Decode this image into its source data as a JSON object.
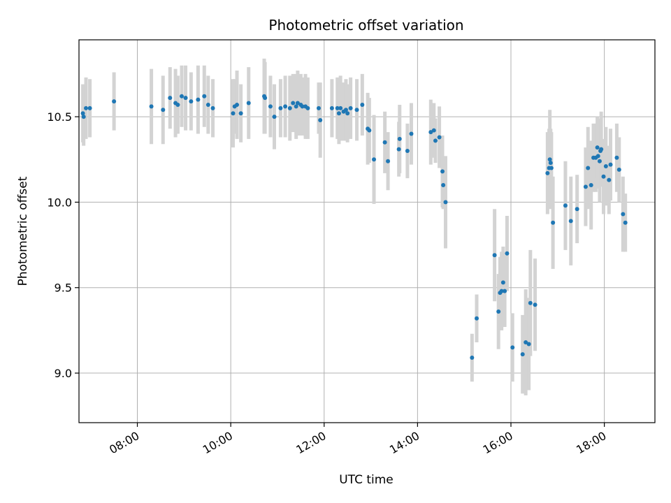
{
  "chart_data": {
    "type": "scatter",
    "title": "Photometric offset variation",
    "xlabel": "UTC time",
    "ylabel": "Photometric offset",
    "xlim": [
      "06:45",
      "19:05"
    ],
    "ylim": [
      8.71,
      10.95
    ],
    "x_ticks": [
      "08:00",
      "10:00",
      "12:00",
      "14:00",
      "16:00",
      "18:00"
    ],
    "y_ticks": [
      "9.0",
      "9.5",
      "10.0",
      "10.5"
    ],
    "grid": true,
    "colors": {
      "point": "#1f77b4",
      "errorbar": "#d3d3d3",
      "grid": "#b0b0b0"
    },
    "points": [
      {
        "x": "06:50",
        "y": 10.52,
        "err": 0.17
      },
      {
        "x": "06:51",
        "y": 10.5,
        "err": 0.17
      },
      {
        "x": "06:54",
        "y": 10.55,
        "err": 0.18
      },
      {
        "x": "06:59",
        "y": 10.55,
        "err": 0.17
      },
      {
        "x": "07:30",
        "y": 10.59,
        "err": 0.17
      },
      {
        "x": "08:18",
        "y": 10.56,
        "err": 0.22
      },
      {
        "x": "08:33",
        "y": 10.54,
        "err": 0.2
      },
      {
        "x": "08:42",
        "y": 10.61,
        "err": 0.18
      },
      {
        "x": "08:49",
        "y": 10.58,
        "err": 0.2
      },
      {
        "x": "08:52",
        "y": 10.57,
        "err": 0.17
      },
      {
        "x": "08:57",
        "y": 10.62,
        "err": 0.18
      },
      {
        "x": "09:02",
        "y": 10.61,
        "err": 0.19
      },
      {
        "x": "09:09",
        "y": 10.59,
        "err": 0.17
      },
      {
        "x": "09:18",
        "y": 10.6,
        "err": 0.2
      },
      {
        "x": "09:26",
        "y": 10.62,
        "err": 0.18
      },
      {
        "x": "09:31",
        "y": 10.57,
        "err": 0.17
      },
      {
        "x": "09:37",
        "y": 10.55,
        "err": 0.17
      },
      {
        "x": "10:03",
        "y": 10.52,
        "err": 0.2
      },
      {
        "x": "10:05",
        "y": 10.56,
        "err": 0.16
      },
      {
        "x": "10:08",
        "y": 10.57,
        "err": 0.2
      },
      {
        "x": "10:13",
        "y": 10.52,
        "err": 0.17
      },
      {
        "x": "10:23",
        "y": 10.58,
        "err": 0.21
      },
      {
        "x": "10:43",
        "y": 10.62,
        "err": 0.22
      },
      {
        "x": "10:44",
        "y": 10.61,
        "err": 0.21
      },
      {
        "x": "10:51",
        "y": 10.56,
        "err": 0.18
      },
      {
        "x": "10:56",
        "y": 10.5,
        "err": 0.19
      },
      {
        "x": "11:04",
        "y": 10.55,
        "err": 0.17
      },
      {
        "x": "11:10",
        "y": 10.56,
        "err": 0.18
      },
      {
        "x": "11:16",
        "y": 10.55,
        "err": 0.19
      },
      {
        "x": "11:20",
        "y": 10.58,
        "err": 0.17
      },
      {
        "x": "11:24",
        "y": 10.56,
        "err": 0.19
      },
      {
        "x": "11:26",
        "y": 10.58,
        "err": 0.19
      },
      {
        "x": "11:30",
        "y": 10.57,
        "err": 0.18
      },
      {
        "x": "11:32",
        "y": 10.56,
        "err": 0.17
      },
      {
        "x": "11:36",
        "y": 10.56,
        "err": 0.19
      },
      {
        "x": "11:39",
        "y": 10.55,
        "err": 0.18
      },
      {
        "x": "11:53",
        "y": 10.55,
        "err": 0.15
      },
      {
        "x": "11:55",
        "y": 10.48,
        "err": 0.22
      },
      {
        "x": "12:10",
        "y": 10.55,
        "err": 0.17
      },
      {
        "x": "12:17",
        "y": 10.55,
        "err": 0.18
      },
      {
        "x": "12:19",
        "y": 10.52,
        "err": 0.18
      },
      {
        "x": "12:21",
        "y": 10.55,
        "err": 0.19
      },
      {
        "x": "12:25",
        "y": 10.53,
        "err": 0.17
      },
      {
        "x": "12:28",
        "y": 10.54,
        "err": 0.18
      },
      {
        "x": "12:30",
        "y": 10.52,
        "err": 0.17
      },
      {
        "x": "12:34",
        "y": 10.55,
        "err": 0.18
      },
      {
        "x": "12:42",
        "y": 10.54,
        "err": 0.18
      },
      {
        "x": "12:49",
        "y": 10.57,
        "err": 0.18
      },
      {
        "x": "12:56",
        "y": 10.43,
        "err": 0.21
      },
      {
        "x": "12:58",
        "y": 10.42,
        "err": 0.19
      },
      {
        "x": "13:04",
        "y": 10.25,
        "err": 0.26
      },
      {
        "x": "13:18",
        "y": 10.35,
        "err": 0.18
      },
      {
        "x": "13:22",
        "y": 10.24,
        "err": 0.17
      },
      {
        "x": "13:36",
        "y": 10.31,
        "err": 0.16
      },
      {
        "x": "13:37",
        "y": 10.37,
        "err": 0.2
      },
      {
        "x": "13:47",
        "y": 10.3,
        "err": 0.16
      },
      {
        "x": "13:52",
        "y": 10.4,
        "err": 0.18
      },
      {
        "x": "14:17",
        "y": 10.41,
        "err": 0.19
      },
      {
        "x": "14:21",
        "y": 10.42,
        "err": 0.16
      },
      {
        "x": "14:23",
        "y": 10.36,
        "err": 0.13
      },
      {
        "x": "14:28",
        "y": 10.38,
        "err": 0.18
      },
      {
        "x": "14:32",
        "y": 10.18,
        "err": 0.21
      },
      {
        "x": "14:33",
        "y": 10.1,
        "err": 0.14
      },
      {
        "x": "14:36",
        "y": 10.0,
        "err": 0.27
      },
      {
        "x": "15:10",
        "y": 9.09,
        "err": 0.14
      },
      {
        "x": "15:16",
        "y": 9.32,
        "err": 0.14
      },
      {
        "x": "15:39",
        "y": 9.69,
        "err": 0.27
      },
      {
        "x": "15:44",
        "y": 9.36,
        "err": 0.22
      },
      {
        "x": "15:46",
        "y": 9.47,
        "err": 0.21
      },
      {
        "x": "15:48",
        "y": 9.48,
        "err": 0.23
      },
      {
        "x": "15:50",
        "y": 9.53,
        "err": 0.21
      },
      {
        "x": "15:52",
        "y": 9.48,
        "err": 0.21
      },
      {
        "x": "15:55",
        "y": 9.7,
        "err": 0.22
      },
      {
        "x": "16:02",
        "y": 9.15,
        "err": 0.2
      },
      {
        "x": "16:15",
        "y": 9.11,
        "err": 0.23
      },
      {
        "x": "16:19",
        "y": 9.18,
        "err": 0.31
      },
      {
        "x": "16:23",
        "y": 9.17,
        "err": 0.27
      },
      {
        "x": "16:25",
        "y": 9.41,
        "err": 0.31
      },
      {
        "x": "16:31",
        "y": 9.4,
        "err": 0.27
      },
      {
        "x": "16:47",
        "y": 10.17,
        "err": 0.24
      },
      {
        "x": "16:49",
        "y": 10.2,
        "err": 0.23
      },
      {
        "x": "16:50",
        "y": 10.25,
        "err": 0.29
      },
      {
        "x": "16:51",
        "y": 10.23,
        "err": 0.2
      },
      {
        "x": "16:52",
        "y": 10.2,
        "err": 0.21
      },
      {
        "x": "16:54",
        "y": 9.88,
        "err": 0.27
      },
      {
        "x": "17:10",
        "y": 9.98,
        "err": 0.26
      },
      {
        "x": "17:17",
        "y": 9.89,
        "err": 0.26
      },
      {
        "x": "17:25",
        "y": 9.96,
        "err": 0.2
      },
      {
        "x": "17:36",
        "y": 10.09,
        "err": 0.23
      },
      {
        "x": "17:39",
        "y": 10.2,
        "err": 0.24
      },
      {
        "x": "17:43",
        "y": 10.1,
        "err": 0.26
      },
      {
        "x": "17:46",
        "y": 10.26,
        "err": 0.2
      },
      {
        "x": "17:49",
        "y": 10.26,
        "err": 0.2
      },
      {
        "x": "17:51",
        "y": 10.32,
        "err": 0.18
      },
      {
        "x": "17:52",
        "y": 10.27,
        "err": 0.19
      },
      {
        "x": "17:54",
        "y": 10.24,
        "err": 0.24
      },
      {
        "x": "17:55",
        "y": 10.3,
        "err": 0.19
      },
      {
        "x": "17:56",
        "y": 10.31,
        "err": 0.22
      },
      {
        "x": "17:59",
        "y": 10.15,
        "err": 0.22
      },
      {
        "x": "18:02",
        "y": 10.21,
        "err": 0.23
      },
      {
        "x": "18:06",
        "y": 10.13,
        "err": 0.2
      },
      {
        "x": "18:08",
        "y": 10.22,
        "err": 0.21
      },
      {
        "x": "18:16",
        "y": 10.26,
        "err": 0.2
      },
      {
        "x": "18:19",
        "y": 10.19,
        "err": 0.19
      },
      {
        "x": "18:24",
        "y": 9.93,
        "err": 0.22
      },
      {
        "x": "18:27",
        "y": 9.88,
        "err": 0.17
      }
    ]
  }
}
